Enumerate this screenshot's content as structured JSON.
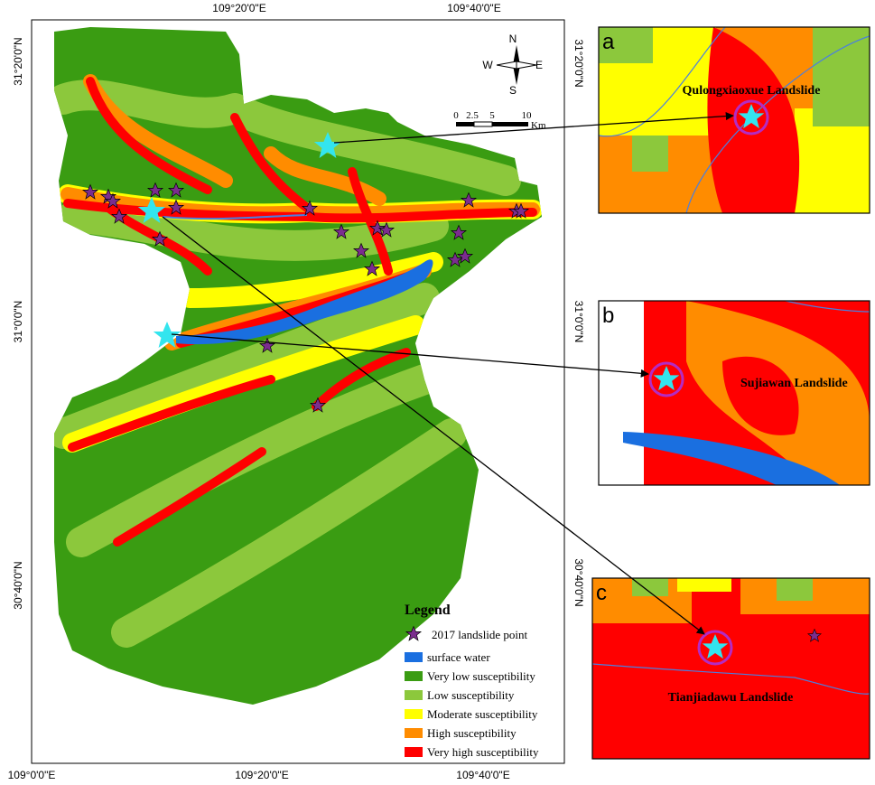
{
  "map": {
    "top_labels": [
      "109°20'0\"E",
      "109°40'0\"E"
    ],
    "bottom_labels": [
      "109°0'0\"E",
      "109°20'0\"E",
      "109°40'0\"E"
    ],
    "left_labels": [
      "31°20'0\"N",
      "31°0'0\"N",
      "30°40'0\"N"
    ],
    "right_labels": [
      "31°20'0\"N",
      "31°0'0\"N",
      "30°40'0\"N"
    ],
    "compass": {
      "n": "N",
      "s": "S",
      "w": "W",
      "e": "E"
    },
    "scale": [
      "0",
      "2.5",
      "5",
      "10",
      "Km"
    ]
  },
  "legend": {
    "title": "Legend",
    "items": [
      "2017 landslide point",
      "surface water",
      "Very low susceptibility",
      "Low susceptibility",
      "Moderate susceptibility",
      "High susceptibility",
      "Very high susceptibility"
    ]
  },
  "insets": [
    {
      "letter": "a",
      "label": "Qulongxiaoxue Landslide"
    },
    {
      "letter": "b",
      "label": "Sujiawan Landslide"
    },
    {
      "letter": "c",
      "label": "Tianjiadawu Landslide"
    }
  ]
}
